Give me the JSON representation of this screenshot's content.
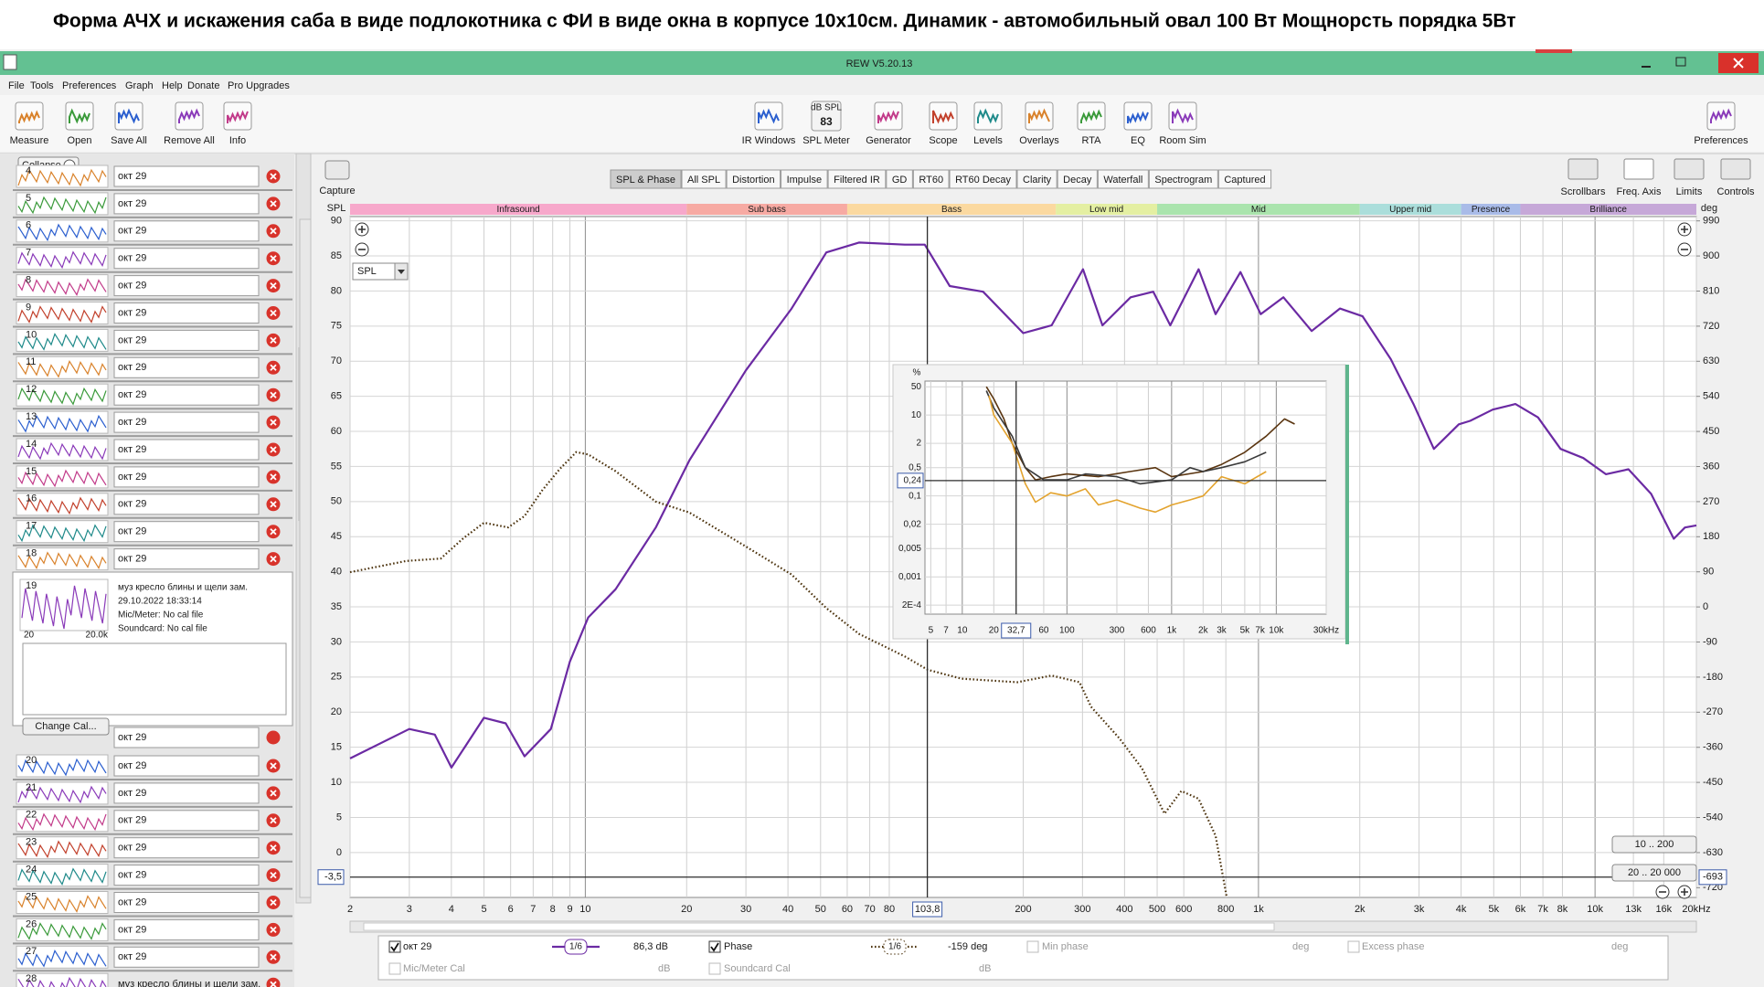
{
  "headline": "Форма АЧХ и искажения саба в виде подлокотника с ФИ в виде окна в корпусе 10х10см.  Динамик - автомобильный овал 100 Вт  Мощнорсть порядка 5Вт",
  "window": {
    "title": "REW V5.20.13"
  },
  "menu": [
    "File",
    "Tools",
    "Preferences",
    "Graph",
    "Help",
    "Donate",
    "Pro Upgrades"
  ],
  "toolbar": {
    "left": [
      "Measure",
      "Open",
      "Save All",
      "Remove All",
      "Info"
    ],
    "center": [
      "IR Windows",
      "SPL Meter",
      "Generator",
      "Scope",
      "Levels",
      "Overlays",
      "RTA",
      "EQ",
      "Room Sim"
    ],
    "right": [
      "Preferences"
    ],
    "spl_meter": {
      "unit": "dB SPL",
      "reading": "83"
    }
  },
  "graph_panel": {
    "capture": "Capture",
    "tabs": [
      "SPL & Phase",
      "All SPL",
      "Distortion",
      "Impulse",
      "Filtered IR",
      "GD",
      "RT60",
      "RT60 Decay",
      "Clarity",
      "Decay",
      "Waterfall",
      "Spectrogram",
      "Captured"
    ],
    "tools": [
      "Scrollbars",
      "Freq. Axis",
      "Limits",
      "Controls"
    ],
    "range_buttons": [
      "10 .. 200",
      "20 .. 20 000"
    ],
    "dropdown": "SPL",
    "bands": [
      {
        "label": "Infrasound",
        "color": "#f7a8cb",
        "from": 2,
        "to": 20
      },
      {
        "label": "Sub bass",
        "color": "#f7aaa3",
        "from": 20,
        "to": 60
      },
      {
        "label": "Bass",
        "color": "#fbd9a0",
        "from": 60,
        "to": 250
      },
      {
        "label": "Low mid",
        "color": "#e4efa2",
        "from": 250,
        "to": 500
      },
      {
        "label": "Mid",
        "color": "#aae4ad",
        "from": 500,
        "to": 2000
      },
      {
        "label": "Upper mid",
        "color": "#abdedb",
        "from": 2000,
        "to": 4000
      },
      {
        "label": "Presence",
        "color": "#a9bbe8",
        "from": 4000,
        "to": 6000
      },
      {
        "label": "Brilliance",
        "color": "#c6a8d8",
        "from": 6000,
        "to": 20000
      }
    ]
  },
  "measurements": {
    "collapse": "Collapse",
    "items": [
      {
        "number": "4",
        "name": "окт 29"
      },
      {
        "number": "5",
        "name": "окт 29"
      },
      {
        "number": "6",
        "name": "окт 29"
      },
      {
        "number": "7",
        "name": "окт 29"
      },
      {
        "number": "8",
        "name": "окт 29"
      },
      {
        "number": "9",
        "name": "окт 29"
      },
      {
        "number": "10",
        "name": "окт 29"
      },
      {
        "number": "11",
        "name": "окт 29"
      },
      {
        "number": "12",
        "name": "окт 29"
      },
      {
        "number": "13",
        "name": "окт 29"
      },
      {
        "number": "14",
        "name": "окт 29"
      },
      {
        "number": "15",
        "name": "окт 29"
      },
      {
        "number": "16",
        "name": "окт 29"
      },
      {
        "number": "17",
        "name": "окт 29"
      },
      {
        "number": "18",
        "name": "окт 29"
      },
      {
        "number": "19",
        "name": "окт 29"
      },
      {
        "number": "20",
        "name": "окт 29"
      },
      {
        "number": "21",
        "name": "окт 29"
      },
      {
        "number": "22",
        "name": "окт 29"
      },
      {
        "number": "23",
        "name": "окт 29"
      },
      {
        "number": "24",
        "name": "окт 29"
      },
      {
        "number": "25",
        "name": "окт 29"
      },
      {
        "number": "26",
        "name": "окт 29"
      },
      {
        "number": "27",
        "name": "окт 29"
      },
      {
        "number": "28",
        "name": "муз кресло блины и щели зам."
      }
    ],
    "details": {
      "title": "муз кресло блины и щели зам.",
      "date": "29.10.2022 18:33:14",
      "mic": "Mic/Meter: No cal file",
      "soundcard": "Soundcard: No cal file",
      "thumb_axis": [
        "20",
        "20.0k"
      ]
    },
    "change_cal": "Change Cal..."
  },
  "legend": {
    "smoothing": "1/6",
    "spl_reading": "86,3 dB",
    "phase_smoothing": "1/6",
    "phase_reading": "-159 deg",
    "min_phase": "Min phase",
    "min_phase_unit": "deg",
    "excess_phase": "Excess phase",
    "excess_phase_unit": "deg",
    "mic_cal": "Mic/Meter Cal",
    "mic_cal_unit": "dB",
    "soundcard_cal": "Soundcard Cal",
    "soundcard_cal_unit": "dB"
  },
  "chart_data": [
    {
      "type": "line",
      "y_label": "SPL",
      "y2_label": "deg",
      "log_x": true,
      "grid": true,
      "xlim": [
        2,
        20000
      ],
      "ylim": [
        -6.4,
        90.6
      ],
      "y2lim": [
        -745,
        1001
      ],
      "xticks": [
        2,
        3,
        4,
        5,
        6,
        7,
        8,
        9,
        10,
        20,
        30,
        40,
        50,
        60,
        70,
        80,
        200,
        300,
        400,
        500,
        600,
        800,
        {
          "value": 1000,
          "label": "1k"
        },
        {
          "value": 2000,
          "label": "2k"
        },
        {
          "value": 3000,
          "label": "3k"
        },
        {
          "value": 4000,
          "label": "4k"
        },
        {
          "value": 5000,
          "label": "5k"
        },
        {
          "value": 6000,
          "label": "6k"
        },
        {
          "value": 7000,
          "label": "7k"
        },
        {
          "value": 8000,
          "label": "8k"
        },
        {
          "value": 10000,
          "label": "10k"
        },
        {
          "value": 13000,
          "label": "13k"
        },
        {
          "value": 16000,
          "label": "16k"
        },
        {
          "value": 20000,
          "label": "20kHz"
        }
      ],
      "yticks": [
        0,
        5,
        10,
        15,
        20,
        25,
        30,
        35,
        40,
        45,
        50,
        55,
        60,
        65,
        70,
        75,
        80,
        85,
        90
      ],
      "y2ticks": [
        990,
        900,
        810,
        720,
        630,
        540,
        450,
        360,
        270,
        180,
        90,
        0,
        -90,
        -180,
        -270,
        -360,
        -450,
        -540,
        -630,
        -720
      ],
      "cursor": {
        "x": {
          "value": 103.8,
          "label": "103,8"
        },
        "y": {
          "value": -3.5,
          "label": "-3,5"
        },
        "y2": -693
      },
      "series": [
        {
          "name": "окт 29",
          "color": "#6b2aa3",
          "x": [
            2,
            3,
            3.57,
            4,
            5,
            5.8,
            6.6,
            7.9,
            9,
            10.2,
            12.3,
            16.2,
            20.4,
            30,
            41,
            52,
            65,
            89,
            102,
            121,
            152,
            200,
            243,
            301,
            344,
            417,
            487,
            547,
            664,
            746,
            884,
            1016,
            1186,
            1439,
            1746,
            2038,
            2472,
            2888,
            3320,
            3937,
            4256,
            4966,
            5799,
            6766,
            7900,
            9226,
            10770,
            12570,
            14680,
            17140,
            18500,
            20000
          ],
          "values": [
            13.4,
            17.6,
            16.8,
            12.1,
            19.2,
            18.4,
            13.7,
            17.6,
            27.2,
            33.5,
            37.5,
            46.3,
            55.9,
            68.7,
            77.5,
            85.5,
            86.9,
            86.6,
            86.6,
            80.7,
            79.9,
            74,
            75.1,
            83.1,
            75.1,
            79.1,
            79.9,
            75.1,
            83.1,
            76.7,
            82.7,
            76.7,
            79.1,
            74.3,
            77.5,
            76.4,
            70.3,
            63.9,
            57.5,
            61,
            61.5,
            63.1,
            63.9,
            62,
            57.5,
            56.2,
            53.9,
            54.6,
            51.1,
            44.7,
            46.3,
            46.6
          ]
        },
        {
          "name": "Phase",
          "color": "#4e3510",
          "axis": "y2",
          "dash": "dotted",
          "x": [
            2,
            2.94,
            3.72,
            4.34,
            5,
            5.9,
            6.6,
            7.45,
            8.4,
            9.4,
            10.2,
            12.3,
            16.2,
            20.4,
            30,
            41,
            52,
            65,
            89,
            104,
            131,
            192,
            243,
            294,
            318,
            386,
            451,
            526,
            590,
            664,
            746,
            805
          ],
          "values": [
            89,
            118,
            124,
            176,
            216,
            204,
            233,
            299,
            354,
            397,
            391,
            348,
            270,
            242,
            155,
            83,
            -3,
            -69,
            -127,
            -161,
            -184,
            -193,
            -176,
            -193,
            -256,
            -337,
            -414,
            -530,
            -472,
            -492,
            -587,
            -745
          ]
        }
      ]
    },
    {
      "type": "line",
      "y_label": "%",
      "log_x": true,
      "log_y": true,
      "grid": true,
      "xlim": [
        4.4,
        30000
      ],
      "ylim": [
        0.00012,
        69
      ],
      "xticks": [
        5,
        7,
        10,
        20,
        60,
        100,
        300,
        600,
        {
          "value": 1000,
          "label": "1k"
        },
        {
          "value": 2000,
          "label": "2k"
        },
        {
          "value": 3000,
          "label": "3k"
        },
        {
          "value": 5000,
          "label": "5k"
        },
        {
          "value": 7000,
          "label": "7k"
        },
        {
          "value": 10000,
          "label": "10k"
        },
        {
          "value": 30000,
          "label": "30kHz"
        }
      ],
      "yticks": [
        50,
        10,
        2,
        {
          "value": 0.5,
          "label": "0,5"
        },
        {
          "value": 0.1,
          "label": "0,1"
        },
        {
          "value": 0.02,
          "label": "0,02"
        },
        {
          "value": 0.005,
          "label": "0,005"
        },
        {
          "value": 0.001,
          "label": "0,001"
        },
        {
          "value": 0.0002,
          "label": "2E-4"
        }
      ],
      "cursor": {
        "x": {
          "value": 32.7,
          "label": "32,7"
        },
        "y": {
          "value": 0.24,
          "label": "0,24"
        }
      },
      "series": [
        {
          "color": "#5a3510",
          "x": [
            17,
            20,
            25,
            30,
            40,
            50,
            70,
            100,
            200,
            400,
            700,
            1000,
            2000,
            3000,
            5000,
            8000,
            12000,
            15000
          ],
          "values": [
            50,
            25,
            8,
            2,
            0.5,
            0.25,
            0.3,
            0.35,
            0.3,
            0.4,
            0.5,
            0.3,
            0.4,
            0.6,
            1.2,
            3,
            8,
            6
          ]
        },
        {
          "color": "#3a3a3a",
          "x": [
            17,
            20,
            30,
            40,
            60,
            100,
            150,
            300,
            500,
            1000,
            1500,
            2000,
            3000,
            5000,
            8000
          ],
          "values": [
            40,
            15,
            3,
            0.5,
            0.25,
            0.25,
            0.35,
            0.3,
            0.2,
            0.25,
            0.5,
            0.4,
            0.5,
            0.7,
            1.2
          ]
        },
        {
          "color": "#e3a32e",
          "x": [
            18,
            20,
            30,
            40,
            50,
            70,
            100,
            150,
            200,
            300,
            500,
            700,
            1000,
            1500,
            2000,
            3000,
            5000,
            8000
          ],
          "values": [
            30,
            10,
            2,
            0.2,
            0.07,
            0.12,
            0.1,
            0.15,
            0.06,
            0.08,
            0.05,
            0.04,
            0.06,
            0.08,
            0.1,
            0.3,
            0.2,
            0.4
          ]
        }
      ]
    }
  ]
}
